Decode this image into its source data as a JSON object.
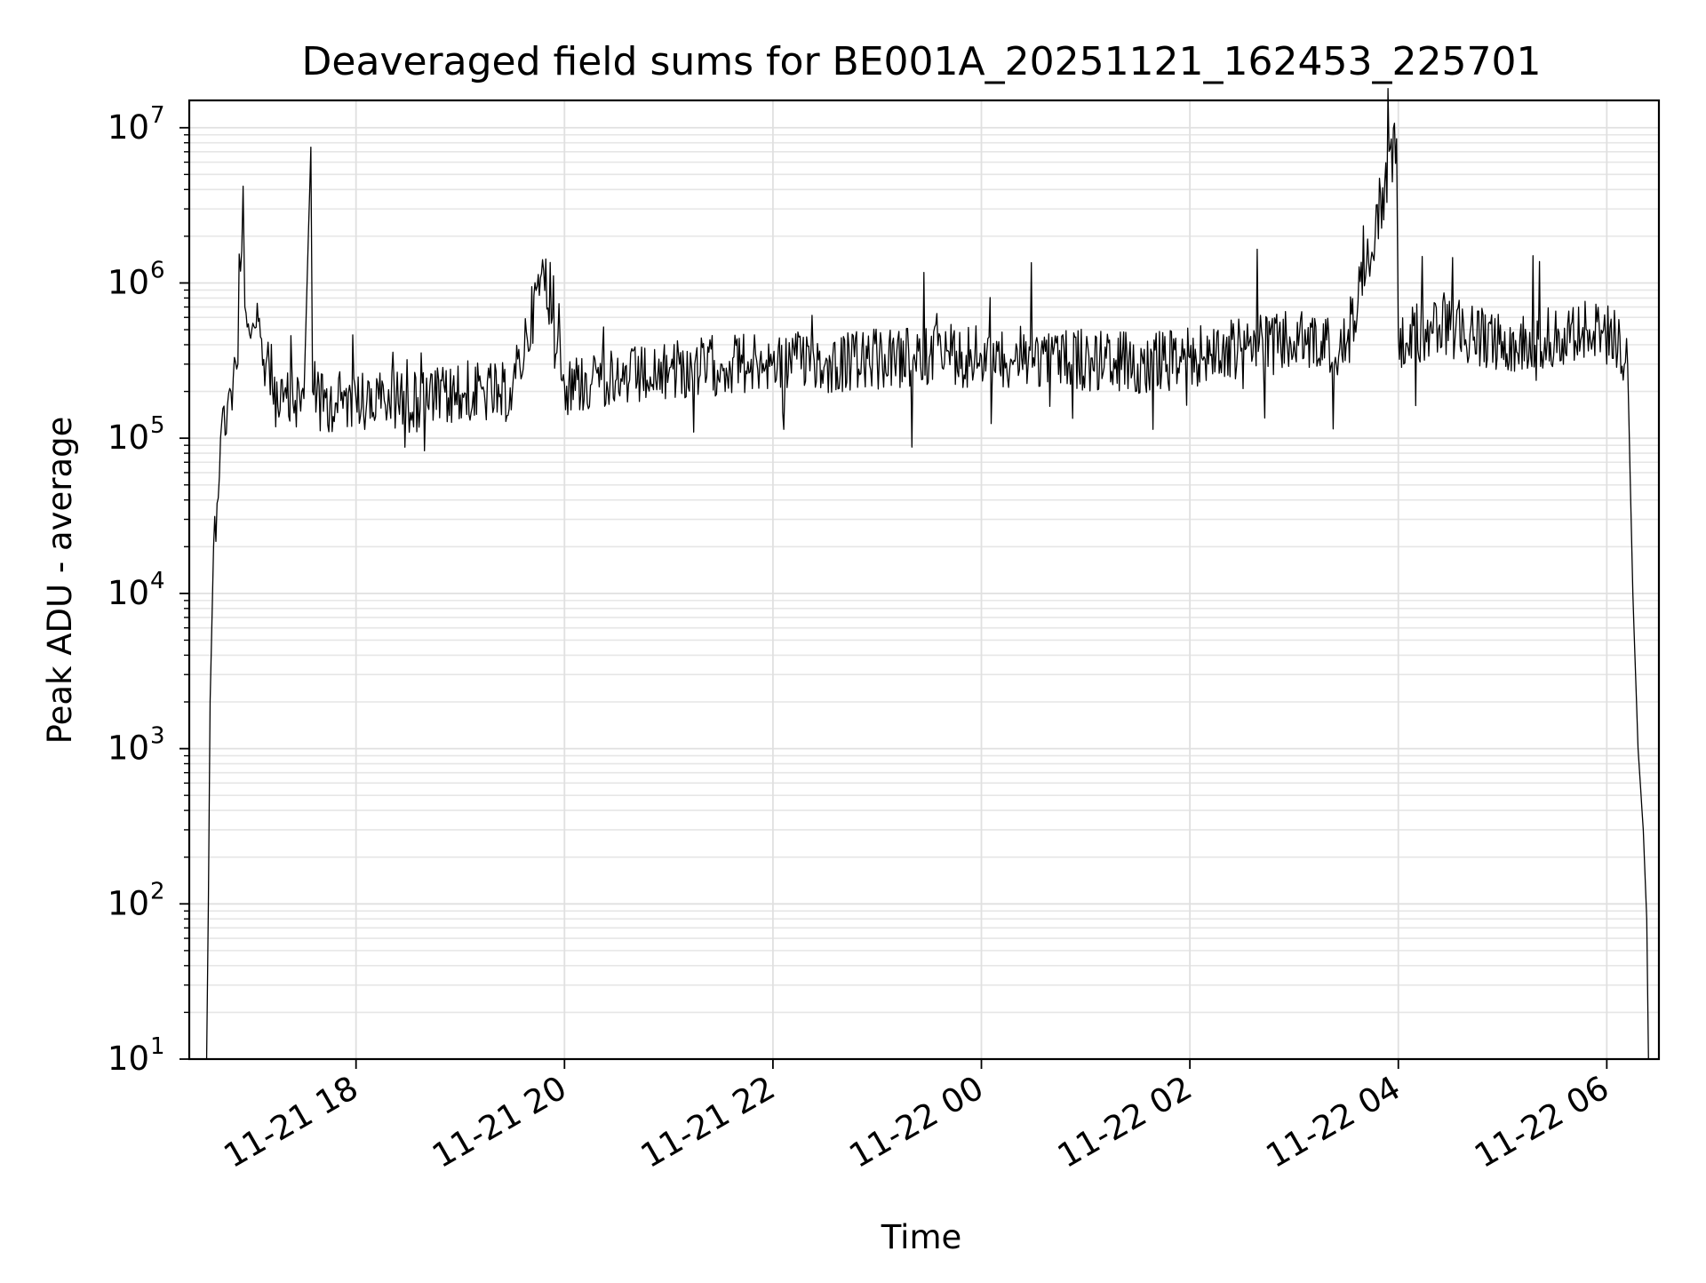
{
  "chart_data": {
    "type": "line",
    "title": "Deaveraged field sums for BE001A_20251121_162453_225701",
    "xlabel": "Time",
    "ylabel": "Peak ADU - average",
    "yscale": "log",
    "ylim": [
      10,
      15000000
    ],
    "xlim": [
      "2025-11-21 16:24",
      "2025-11-22 06:30"
    ],
    "grid": true,
    "x_ticks": [
      {
        "value": "2025-11-21 18:00",
        "label": "11-21 18"
      },
      {
        "value": "2025-11-21 20:00",
        "label": "11-21 20"
      },
      {
        "value": "2025-11-21 22:00",
        "label": "11-21 22"
      },
      {
        "value": "2025-11-22 00:00",
        "label": "11-22 00"
      },
      {
        "value": "2025-11-22 02:00",
        "label": "11-22 02"
      },
      {
        "value": "2025-11-22 04:00",
        "label": "11-22 04"
      },
      {
        "value": "2025-11-22 06:00",
        "label": "11-22 06"
      }
    ],
    "y_ticks": [
      {
        "value": 10,
        "base": "10",
        "exp": "1"
      },
      {
        "value": 100,
        "base": "10",
        "exp": "2"
      },
      {
        "value": 1000,
        "base": "10",
        "exp": "3"
      },
      {
        "value": 10000,
        "base": "10",
        "exp": "4"
      },
      {
        "value": 100000,
        "base": "10",
        "exp": "5"
      },
      {
        "value": 1000000,
        "base": "10",
        "exp": "6"
      },
      {
        "value": 10000000,
        "base": "10",
        "exp": "7"
      }
    ],
    "series": [
      {
        "color": "#000000",
        "points": [
          [
            "2025-11-21 16:34",
            10
          ],
          [
            "2025-11-21 16:35",
            100
          ],
          [
            "2025-11-21 16:36",
            2000
          ],
          [
            "2025-11-21 16:38",
            20000
          ],
          [
            "2025-11-21 16:42",
            100000
          ],
          [
            "2025-11-21 16:48",
            200000
          ],
          [
            "2025-11-21 16:52",
            300000
          ],
          [
            "2025-11-21 16:55",
            4200000
          ],
          [
            "2025-11-21 16:56",
            700000
          ],
          [
            "2025-11-21 17:00",
            500000
          ],
          [
            "2025-11-21 17:05",
            450000
          ],
          [
            "2025-11-21 17:10",
            300000
          ],
          [
            "2025-11-21 17:15",
            160000
          ],
          [
            "2025-11-21 17:30",
            180000
          ],
          [
            "2025-11-21 17:34",
            7500000
          ],
          [
            "2025-11-21 17:35",
            200000
          ],
          [
            "2025-11-21 17:45",
            170000
          ],
          [
            "2025-11-21 18:00",
            180000
          ],
          [
            "2025-11-21 18:30",
            170000
          ],
          [
            "2025-11-21 19:00",
            190000
          ],
          [
            "2025-11-21 19:30",
            200000
          ],
          [
            "2025-11-21 19:48",
            1200000
          ],
          [
            "2025-11-21 20:00",
            220000
          ],
          [
            "2025-11-21 20:30",
            240000
          ],
          [
            "2025-11-21 21:00",
            260000
          ],
          [
            "2025-11-21 21:30",
            300000
          ],
          [
            "2025-11-21 22:00",
            310000
          ],
          [
            "2025-11-21 22:30",
            300000
          ],
          [
            "2025-11-21 23:00",
            320000
          ],
          [
            "2025-11-21 23:30",
            330000
          ],
          [
            "2025-11-22 00:00",
            340000
          ],
          [
            "2025-11-22 00:30",
            330000
          ],
          [
            "2025-11-22 01:00",
            320000
          ],
          [
            "2025-11-22 01:30",
            300000
          ],
          [
            "2025-11-22 02:00",
            330000
          ],
          [
            "2025-11-22 02:30",
            380000
          ],
          [
            "2025-11-22 03:00",
            420000
          ],
          [
            "2025-11-22 03:30",
            400000
          ],
          [
            "2025-11-22 03:59",
            8500000
          ],
          [
            "2025-11-22 04:00",
            450000
          ],
          [
            "2025-11-22 04:30",
            500000
          ],
          [
            "2025-11-22 05:00",
            420000
          ],
          [
            "2025-11-22 05:30",
            450000
          ],
          [
            "2025-11-22 05:50",
            500000
          ],
          [
            "2025-11-22 06:05",
            450000
          ],
          [
            "2025-11-22 06:12",
            300000
          ],
          [
            "2025-11-22 06:15",
            10000
          ],
          [
            "2025-11-22 06:18",
            1000
          ],
          [
            "2025-11-22 06:21",
            300
          ],
          [
            "2025-11-22 06:23",
            80
          ],
          [
            "2025-11-22 06:24",
            10
          ]
        ]
      }
    ]
  }
}
